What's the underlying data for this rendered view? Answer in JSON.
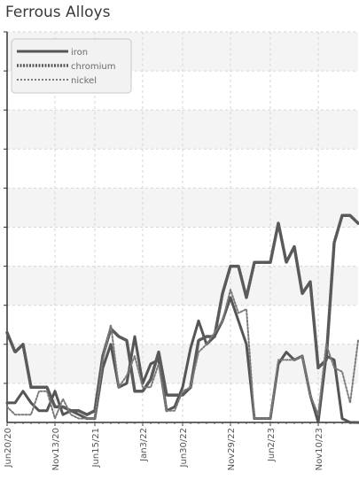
{
  "chart_data": {
    "type": "line",
    "title": "Ferrous Alloys",
    "xlabel": "",
    "ylabel": "",
    "ylim": [
      0,
      100
    ],
    "grid": true,
    "legend_position": "top-left",
    "x_tick_labels": [
      "Jun20/20",
      "Nov13/20",
      "Jun15/21",
      "Jan3/22",
      "Jun30/22",
      "Nov29/22",
      "Jun2/23",
      "Nov10/23"
    ],
    "series": [
      {
        "name": "iron",
        "style": "solid",
        "color": "#555555",
        "values": [
          5,
          5,
          8,
          5,
          3,
          3,
          8,
          2,
          3,
          2,
          1,
          1,
          14,
          20,
          9,
          10,
          22,
          10,
          15,
          16,
          3,
          4,
          9,
          19,
          26,
          20,
          22,
          26,
          32,
          26,
          20,
          1,
          1,
          1,
          15,
          18,
          16,
          17,
          7,
          0,
          17,
          16,
          1,
          0,
          0
        ]
      },
      {
        "name": "chromium",
        "style": "dense-dashed",
        "color": "#5a5a5a",
        "values": [
          23,
          18,
          20,
          9,
          9,
          9,
          4,
          4,
          3,
          3,
          2,
          3,
          17,
          24,
          22,
          21,
          8,
          8,
          11,
          18,
          7,
          7,
          7,
          9,
          21,
          22,
          22,
          33,
          40,
          40,
          32,
          41,
          41,
          41,
          51,
          41,
          45,
          33,
          36,
          14,
          16,
          46,
          53,
          53,
          51
        ]
      },
      {
        "name": "nickel",
        "style": "dashed",
        "color": "#7a7a7a",
        "values": [
          4,
          2,
          2,
          2,
          8,
          8,
          1,
          6,
          2,
          1,
          1,
          1,
          16,
          25,
          9,
          12,
          17,
          9,
          9,
          15,
          3,
          3,
          8,
          9,
          18,
          20,
          23,
          26,
          34,
          28,
          29,
          1,
          1,
          1,
          16,
          16,
          16,
          17,
          7,
          2,
          20,
          14,
          13,
          5,
          21
        ]
      }
    ]
  }
}
